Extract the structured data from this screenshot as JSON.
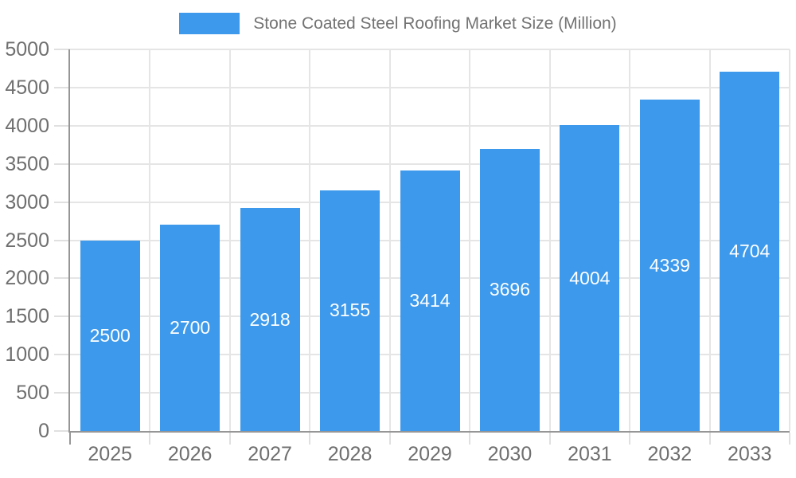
{
  "legend": {
    "label": "Stone Coated Steel Roofing Market Size (Million)"
  },
  "colors": {
    "background": "#FFFFFF",
    "bar": "#3C99EC",
    "grid": "#E5E5E5",
    "tick": "#E0E0E0",
    "axis": "#969696",
    "tick_label": "#6F6F6F",
    "legend_text": "#737373",
    "bar_label": "#FFFFFF"
  },
  "chart_data": {
    "type": "bar",
    "title": "Stone Coated Steel Roofing Market Size (Million)",
    "categories": [
      "2025",
      "2026",
      "2027",
      "2028",
      "2029",
      "2030",
      "2031",
      "2032",
      "2033"
    ],
    "values": [
      2500,
      2700,
      2918,
      3155,
      3414,
      3696,
      4004,
      4339,
      4704
    ],
    "yticks": [
      0,
      500,
      1000,
      1500,
      2000,
      2500,
      3000,
      3500,
      4000,
      4500,
      5000
    ],
    "ylim": [
      0,
      5000
    ],
    "xlabel": "",
    "ylabel": "",
    "grid": true,
    "legend_position": "top",
    "value_labels": {
      "position": "inside-center",
      "color": "#FFFFFF"
    }
  }
}
